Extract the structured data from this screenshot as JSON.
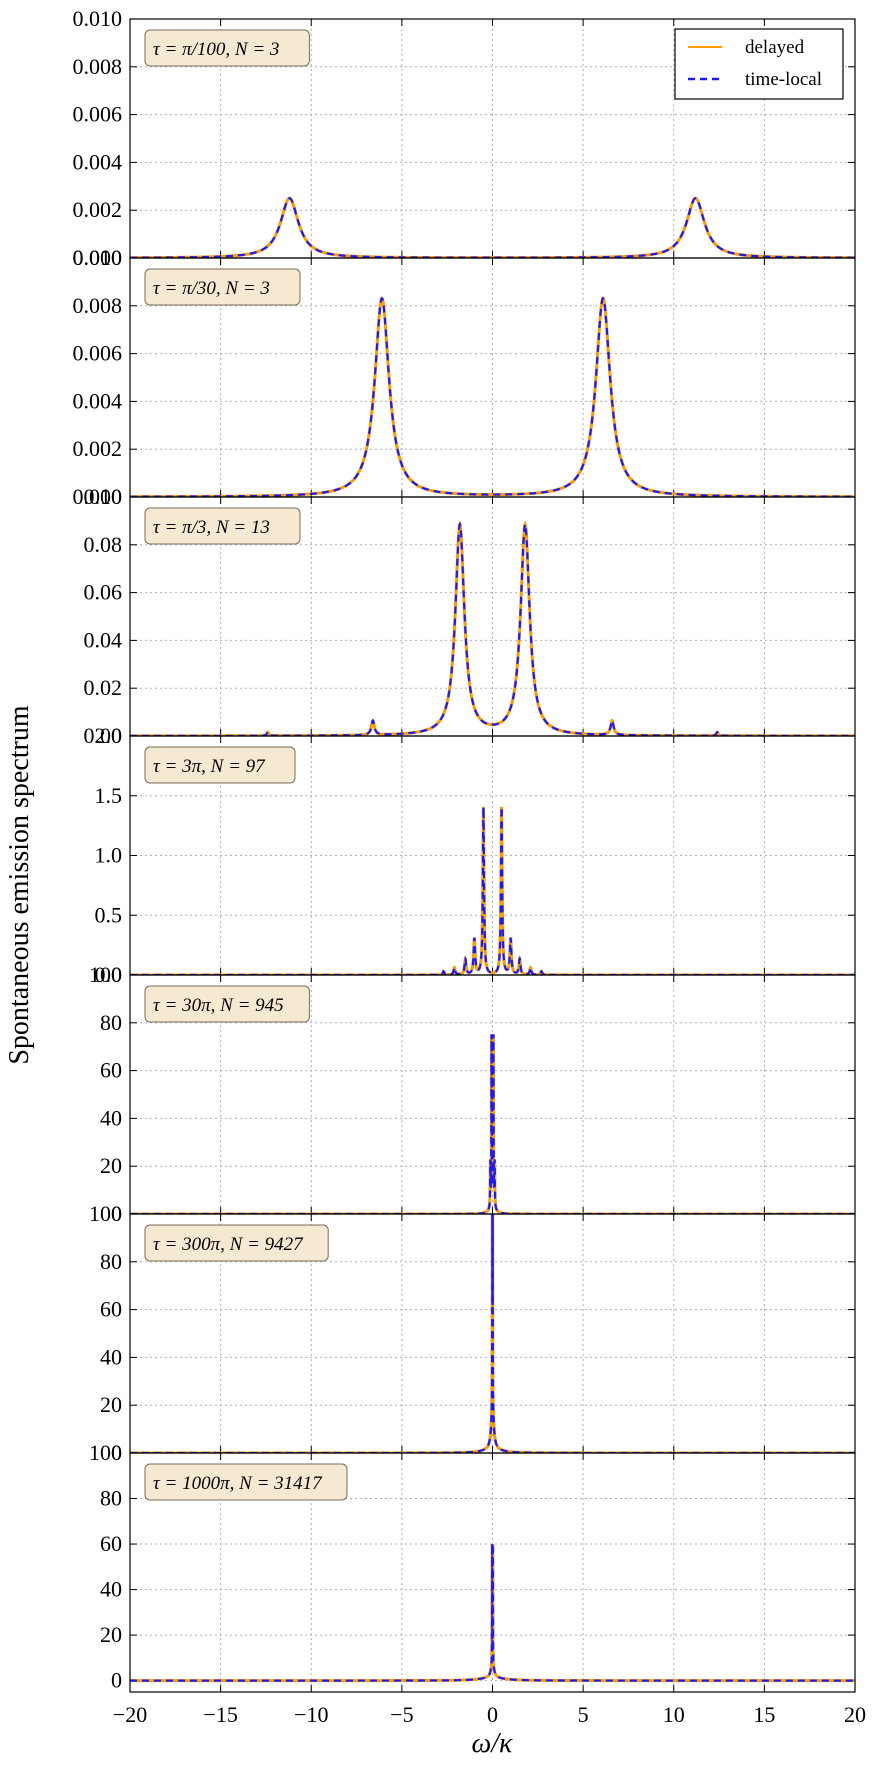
{
  "chart_data": {
    "type": "line",
    "ylabel": "Spontaneous emission spectrum",
    "xlabel": "ω/κ",
    "xlim": [
      -20,
      20
    ],
    "x_ticks": [
      -20,
      -15,
      -10,
      -5,
      0,
      5,
      10,
      15,
      20
    ],
    "grid": true,
    "legend": {
      "placement": "top-right of first panel",
      "entries": [
        {
          "name": "delayed",
          "color": "#ff9a00",
          "style": "solid"
        },
        {
          "name": "time-local",
          "color": "#1a1aff",
          "style": "dashed"
        }
      ]
    },
    "panels": [
      {
        "label": "τ = π/100, N = 3",
        "ylim": [
          0,
          0.01
        ],
        "y_ticks": [
          "0.000",
          "0.002",
          "0.004",
          "0.006",
          "0.008",
          "0.010"
        ],
        "peaks": [
          {
            "x": -11.2,
            "height": 0.0025,
            "width": 0.6
          },
          {
            "x": 11.2,
            "height": 0.0025,
            "width": 0.6
          }
        ],
        "baseline": 0.0
      },
      {
        "label": "τ = π/30, N = 3",
        "ylim": [
          0,
          0.01
        ],
        "y_ticks": [
          "0.000",
          "0.002",
          "0.004",
          "0.006",
          "0.008",
          "0.010"
        ],
        "peaks": [
          {
            "x": -6.1,
            "height": 0.0083,
            "width": 0.48
          },
          {
            "x": 6.1,
            "height": 0.0083,
            "width": 0.48
          }
        ],
        "baseline": 0.0
      },
      {
        "label": "τ = π/3, N = 13",
        "ylim": [
          0,
          0.1
        ],
        "y_ticks": [
          "0.00",
          "0.02",
          "0.04",
          "0.06",
          "0.08",
          "0.10"
        ],
        "peaks": [
          {
            "x": -1.8,
            "height": 0.088,
            "width": 0.3
          },
          {
            "x": 1.8,
            "height": 0.088,
            "width": 0.3
          },
          {
            "x": -6.6,
            "height": 0.006,
            "width": 0.1
          },
          {
            "x": 6.6,
            "height": 0.006,
            "width": 0.1
          },
          {
            "x": -12.4,
            "height": 0.0015,
            "width": 0.06
          },
          {
            "x": 12.4,
            "height": 0.0015,
            "width": 0.06
          }
        ],
        "baseline": 0.0
      },
      {
        "label": "τ = 3π, N = 97",
        "ylim": [
          0,
          2.0
        ],
        "y_ticks": [
          "0.0",
          "0.5",
          "1.0",
          "1.5",
          "2.0"
        ],
        "peaks": [
          {
            "x": -0.5,
            "height": 1.4,
            "width": 0.04
          },
          {
            "x": 0.5,
            "height": 1.4,
            "width": 0.04
          },
          {
            "x": -1.0,
            "height": 0.3,
            "width": 0.05
          },
          {
            "x": 1.0,
            "height": 0.3,
            "width": 0.05
          },
          {
            "x": -1.5,
            "height": 0.13,
            "width": 0.05
          },
          {
            "x": 1.5,
            "height": 0.13,
            "width": 0.05
          },
          {
            "x": -2.1,
            "height": 0.06,
            "width": 0.05
          },
          {
            "x": 2.1,
            "height": 0.06,
            "width": 0.05
          },
          {
            "x": -2.7,
            "height": 0.03,
            "width": 0.05
          },
          {
            "x": 2.7,
            "height": 0.03,
            "width": 0.05
          }
        ],
        "baseline": 0.0
      },
      {
        "label": "τ = 30π, N = 945",
        "ylim": [
          0,
          100
        ],
        "y_ticks": [
          "0",
          "20",
          "40",
          "60",
          "80",
          "100"
        ],
        "peaks": [
          {
            "x": -0.05,
            "height": 70,
            "width": 0.012
          },
          {
            "x": 0.05,
            "height": 70,
            "width": 0.012
          },
          {
            "x": -0.12,
            "height": 18,
            "width": 0.012
          },
          {
            "x": 0.12,
            "height": 18,
            "width": 0.012
          },
          {
            "x": 0.0,
            "height": 4,
            "width": 0.15
          }
        ],
        "baseline": 0.0
      },
      {
        "label": "τ = 300π, N = 9427",
        "ylim": [
          0,
          100
        ],
        "y_ticks": [
          "0",
          "20",
          "40",
          "60",
          "80",
          "100"
        ],
        "peaks": [
          {
            "x": -0.01,
            "height": 80,
            "width": 0.006
          },
          {
            "x": 0.01,
            "height": 80,
            "width": 0.006
          },
          {
            "x": 0.0,
            "height": 18,
            "width": 0.08
          },
          {
            "x": 0.0,
            "height": 1.5,
            "width": 0.6
          }
        ],
        "baseline": 0.0
      },
      {
        "label": "τ = 1000π, N = 31417",
        "ylim": [
          -5,
          100
        ],
        "y_ticks": [
          "0",
          "20",
          "40",
          "60",
          "80",
          "100"
        ],
        "peaks": [
          {
            "x": -0.02,
            "height": 52,
            "width": 0.006
          },
          {
            "x": 0.02,
            "height": 52,
            "width": 0.006
          },
          {
            "x": 0.0,
            "height": 6,
            "width": 0.1
          },
          {
            "x": 0.0,
            "height": 1.2,
            "width": 0.8
          }
        ],
        "baseline": 0.0
      }
    ]
  }
}
